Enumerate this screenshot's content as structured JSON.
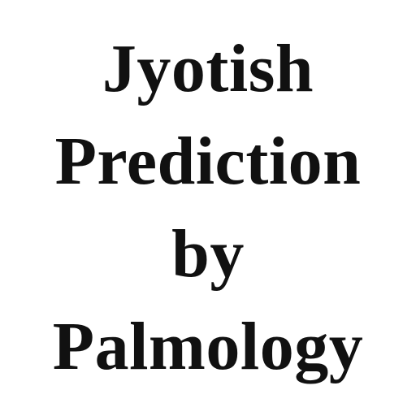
{
  "title": {
    "lines": [
      "Jyotish",
      "Prediction",
      "by",
      "Palmology"
    ]
  },
  "colors": {
    "background": "#ffffff",
    "text": "#111111"
  }
}
